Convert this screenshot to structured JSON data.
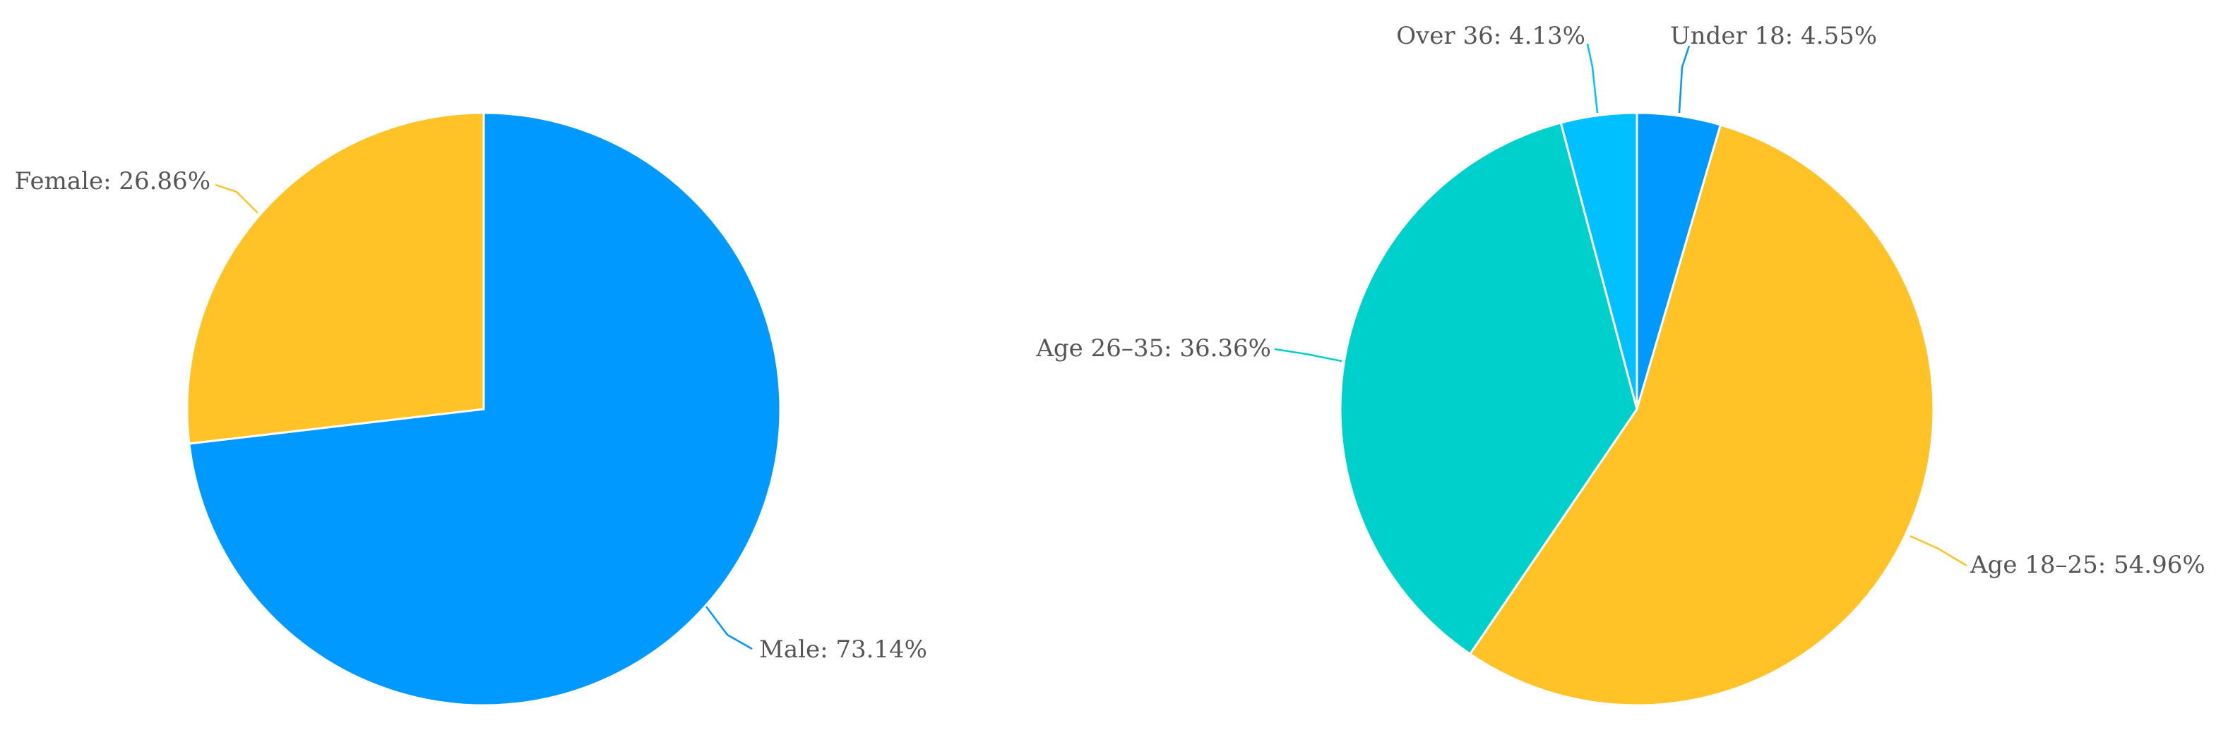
{
  "chart_data": [
    {
      "type": "pie",
      "slices": [
        {
          "label": "Male: 73.14%",
          "value": 73.14,
          "color": "#0099ff"
        },
        {
          "label": "Female: 26.86%",
          "value": 26.86,
          "color": "#ffc327"
        }
      ]
    },
    {
      "type": "pie",
      "slices": [
        {
          "label": "Under 18: 4.55%",
          "value": 4.55,
          "color": "#0099ff"
        },
        {
          "label": "Age 18–25: 54.96%",
          "value": 54.96,
          "color": "#ffc327"
        },
        {
          "label": "Age 26–35: 36.36%",
          "value": 36.36,
          "color": "#00d0cc"
        },
        {
          "label": "Over 36: 4.13%",
          "value": 4.13,
          "color": "#00c0ff"
        }
      ]
    }
  ]
}
